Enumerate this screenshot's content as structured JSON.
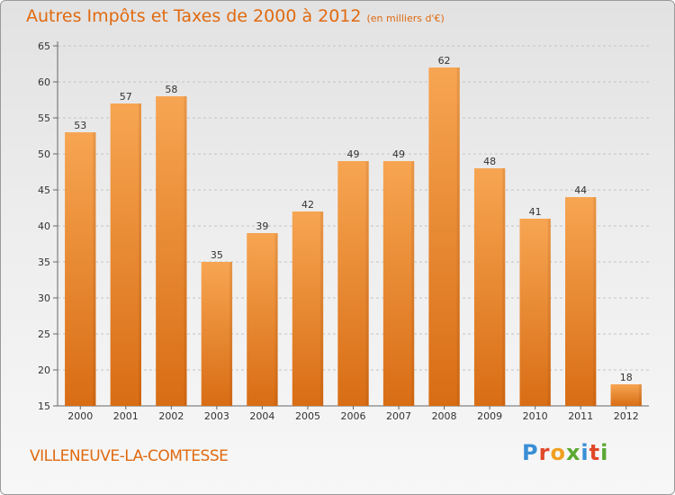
{
  "header": {
    "title": "Autres Impôts et Taxes de 2000 à 2012",
    "unit": "(en milliers d'€)"
  },
  "footer": {
    "commune": "VILLENEUVE-LA-COMTESSE",
    "logo_text": "Proxiti"
  },
  "colors": {
    "accent": "#e06a10",
    "bar_top": "#f7a552",
    "bar_bottom": "#d86d14",
    "grid": "#c4c4c4"
  },
  "chart_data": {
    "type": "bar",
    "title": "Autres Impôts et Taxes de 2000 à 2012",
    "xlabel": "",
    "ylabel": "",
    "categories": [
      "2000",
      "2001",
      "2002",
      "2003",
      "2004",
      "2005",
      "2006",
      "2007",
      "2008",
      "2009",
      "2010",
      "2011",
      "2012"
    ],
    "values": [
      53,
      57,
      58,
      35,
      39,
      42,
      49,
      49,
      62,
      48,
      41,
      44,
      18
    ],
    "ylim": [
      15,
      65
    ],
    "yticks": [
      15,
      20,
      25,
      30,
      35,
      40,
      45,
      50,
      55,
      60,
      65
    ],
    "grid": true,
    "data_labels": true
  }
}
